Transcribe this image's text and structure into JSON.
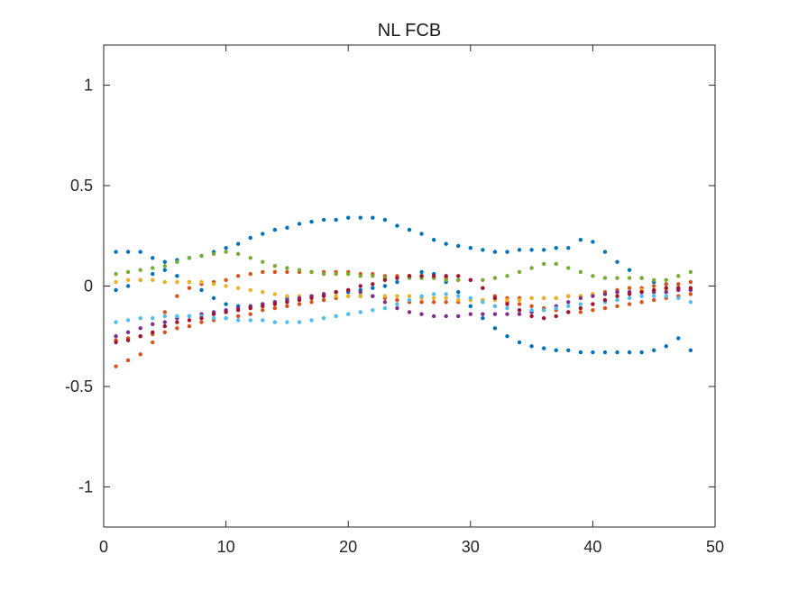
{
  "chart_data": {
    "type": "scatter",
    "title": "NL FCB",
    "xlabel": "",
    "ylabel": "",
    "xlim": [
      0,
      50
    ],
    "ylim": [
      -1.2,
      1.2
    ],
    "xticks": [
      0,
      10,
      20,
      30,
      40,
      50
    ],
    "yticks": [
      -1,
      -0.5,
      0,
      0.5,
      1
    ],
    "xtick_labels": [
      "0",
      "10",
      "20",
      "30",
      "40",
      "50"
    ],
    "ytick_labels": [
      "-1",
      "-0.5",
      "0",
      "0.5",
      "1"
    ],
    "grid": false,
    "x": [
      1,
      2,
      3,
      4,
      5,
      6,
      7,
      8,
      9,
      10,
      11,
      12,
      13,
      14,
      15,
      16,
      17,
      18,
      19,
      20,
      21,
      22,
      23,
      24,
      25,
      26,
      27,
      28,
      29,
      30,
      31,
      32,
      33,
      34,
      35,
      36,
      37,
      38,
      39,
      40,
      41,
      42,
      43,
      44,
      45,
      46,
      47,
      48
    ],
    "series": [
      {
        "color": "#0072BD",
        "values": [
          0.17,
          0.17,
          0.17,
          0.14,
          0.12,
          0.13,
          0.14,
          0.15,
          0.17,
          0.19,
          0.21,
          0.24,
          0.26,
          0.28,
          0.29,
          0.31,
          0.32,
          0.33,
          0.33,
          0.34,
          0.34,
          0.34,
          0.33,
          0.3,
          0.28,
          0.26,
          0.23,
          0.21,
          0.2,
          0.19,
          0.18,
          0.17,
          0.17,
          0.18,
          0.18,
          0.18,
          0.19,
          0.19,
          0.23,
          0.22,
          0.17,
          0.12,
          0.08,
          0.04,
          0.02,
          0.01,
          -0.01,
          -0.02
        ]
      },
      {
        "color": "#0072BD",
        "values": [
          -0.02,
          0.0,
          0.03,
          0.06,
          0.08,
          0.05,
          0.02,
          -0.02,
          -0.06,
          -0.09,
          -0.1,
          -0.1,
          -0.09,
          -0.08,
          -0.06,
          -0.06,
          -0.05,
          -0.04,
          -0.03,
          -0.03,
          -0.02,
          -0.01,
          0.0,
          0.02,
          0.05,
          0.07,
          0.06,
          0.02,
          -0.03,
          -0.1,
          -0.16,
          -0.21,
          -0.25,
          -0.28,
          -0.3,
          -0.31,
          -0.32,
          -0.32,
          -0.33,
          -0.33,
          -0.33,
          -0.33,
          -0.33,
          -0.33,
          -0.32,
          -0.3,
          -0.26,
          -0.32
        ]
      },
      {
        "color": "#D95319",
        "values": [
          -0.4,
          -0.37,
          -0.34,
          -0.28,
          -0.13,
          -0.05,
          -0.01,
          0.01,
          0.02,
          0.03,
          0.05,
          0.06,
          0.07,
          0.07,
          0.07,
          0.07,
          0.07,
          0.07,
          0.07,
          0.07,
          0.06,
          0.06,
          0.05,
          0.05,
          0.05,
          0.05,
          0.04,
          0.04,
          0.03,
          0.03,
          -0.01,
          -0.05,
          -0.08,
          -0.09,
          -0.1,
          -0.11,
          -0.12,
          -0.13,
          -0.13,
          -0.12,
          -0.11,
          -0.1,
          -0.09,
          -0.08,
          -0.07,
          -0.06,
          -0.05,
          -0.04
        ]
      },
      {
        "color": "#D95319",
        "values": [
          -0.27,
          -0.26,
          -0.25,
          -0.24,
          -0.23,
          -0.21,
          -0.2,
          -0.18,
          -0.17,
          -0.16,
          -0.15,
          -0.14,
          -0.12,
          -0.11,
          -0.1,
          -0.09,
          -0.08,
          -0.07,
          -0.06,
          -0.05,
          -0.05,
          -0.05,
          -0.06,
          -0.07,
          -0.08,
          -0.08,
          -0.08,
          -0.08,
          -0.08,
          -0.07,
          -0.07,
          -0.06,
          -0.06,
          -0.06,
          -0.06,
          -0.06,
          -0.06,
          -0.05,
          -0.05,
          -0.04,
          -0.03,
          -0.02,
          -0.01,
          -0.01,
          0.0,
          0.01,
          0.01,
          0.02
        ]
      },
      {
        "color": "#EDB120",
        "values": [
          0.02,
          0.03,
          0.03,
          0.03,
          0.02,
          0.02,
          0.02,
          0.02,
          0.01,
          0.0,
          -0.01,
          -0.02,
          -0.03,
          -0.04,
          -0.05,
          -0.05,
          -0.05,
          -0.05,
          -0.05,
          -0.05,
          -0.05,
          -0.05,
          -0.05,
          -0.05,
          -0.05,
          -0.06,
          -0.06,
          -0.06,
          -0.07,
          -0.07,
          -0.07,
          -0.07,
          -0.07,
          -0.07,
          -0.06,
          -0.06,
          -0.06,
          -0.05,
          -0.05,
          -0.04,
          -0.04,
          -0.03,
          -0.03,
          -0.02,
          -0.02,
          -0.02,
          -0.02,
          -0.02
        ]
      },
      {
        "color": "#7E2F8E",
        "values": [
          -0.25,
          -0.23,
          -0.21,
          -0.19,
          -0.18,
          -0.16,
          -0.15,
          -0.14,
          -0.13,
          -0.12,
          -0.11,
          -0.1,
          -0.09,
          -0.08,
          -0.07,
          -0.06,
          -0.05,
          -0.04,
          -0.03,
          -0.02,
          -0.03,
          -0.05,
          -0.08,
          -0.11,
          -0.13,
          -0.14,
          -0.15,
          -0.15,
          -0.15,
          -0.14,
          -0.14,
          -0.14,
          -0.14,
          -0.14,
          -0.13,
          -0.12,
          -0.1,
          -0.08,
          -0.06,
          -0.05,
          -0.04,
          -0.03,
          -0.03,
          -0.03,
          -0.03,
          -0.03,
          -0.02,
          -0.02
        ]
      },
      {
        "color": "#77AC30",
        "values": [
          0.06,
          0.07,
          0.08,
          0.09,
          0.1,
          0.12,
          0.14,
          0.15,
          0.16,
          0.17,
          0.16,
          0.14,
          0.12,
          0.1,
          0.09,
          0.08,
          0.07,
          0.06,
          0.06,
          0.06,
          0.05,
          0.05,
          0.04,
          0.04,
          0.04,
          0.04,
          0.04,
          0.03,
          0.03,
          0.03,
          0.03,
          0.04,
          0.05,
          0.07,
          0.09,
          0.11,
          0.11,
          0.09,
          0.07,
          0.05,
          0.04,
          0.04,
          0.04,
          0.04,
          0.03,
          0.03,
          0.05,
          0.07
        ]
      },
      {
        "color": "#4DBEEE",
        "values": [
          -0.18,
          -0.17,
          -0.16,
          -0.16,
          -0.15,
          -0.15,
          -0.15,
          -0.15,
          -0.16,
          -0.16,
          -0.17,
          -0.17,
          -0.17,
          -0.18,
          -0.18,
          -0.18,
          -0.17,
          -0.16,
          -0.15,
          -0.14,
          -0.13,
          -0.12,
          -0.11,
          -0.09,
          -0.07,
          -0.05,
          -0.04,
          -0.04,
          -0.05,
          -0.06,
          -0.08,
          -0.1,
          -0.11,
          -0.12,
          -0.12,
          -0.12,
          -0.11,
          -0.1,
          -0.09,
          -0.09,
          -0.08,
          -0.07,
          -0.06,
          -0.05,
          -0.05,
          -0.05,
          -0.06,
          -0.08
        ]
      },
      {
        "color": "#A2142F",
        "values": [
          -0.28,
          -0.27,
          -0.25,
          -0.23,
          -0.2,
          -0.18,
          -0.17,
          -0.16,
          -0.14,
          -0.13,
          -0.12,
          -0.11,
          -0.1,
          -0.09,
          -0.08,
          -0.07,
          -0.06,
          -0.05,
          -0.03,
          -0.02,
          0.0,
          0.01,
          0.03,
          0.04,
          0.05,
          0.05,
          0.05,
          0.05,
          0.05,
          0.03,
          -0.01,
          -0.06,
          -0.09,
          -0.12,
          -0.15,
          -0.16,
          -0.15,
          -0.13,
          -0.11,
          -0.09,
          -0.07,
          -0.05,
          -0.04,
          -0.03,
          -0.02,
          -0.01,
          -0.01,
          -0.01
        ]
      }
    ]
  }
}
